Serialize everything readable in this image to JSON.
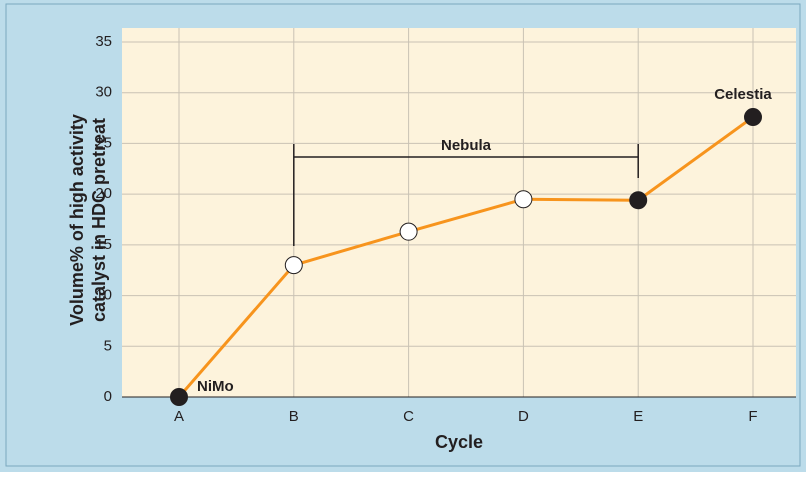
{
  "chart_data": {
    "type": "line",
    "y_label": [
      "Volume% of high activity",
      "catalyst in HDC pretreat"
    ],
    "x_label": "Cycle",
    "categories": [
      "A",
      "B",
      "C",
      "D",
      "E",
      "F"
    ],
    "series": [
      {
        "color": "#f7941d",
        "values": [
          0,
          13,
          16.3,
          19.5,
          19.4,
          27.6
        ],
        "filled_markers": [
          true,
          false,
          false,
          false,
          true,
          true
        ]
      }
    ],
    "ylim": [
      0,
      35
    ],
    "yticks": [
      0,
      5,
      10,
      15,
      20,
      25,
      30,
      35
    ],
    "grid": true,
    "annotations": [
      "NiMo",
      "Nebula",
      "Celestia"
    ]
  }
}
